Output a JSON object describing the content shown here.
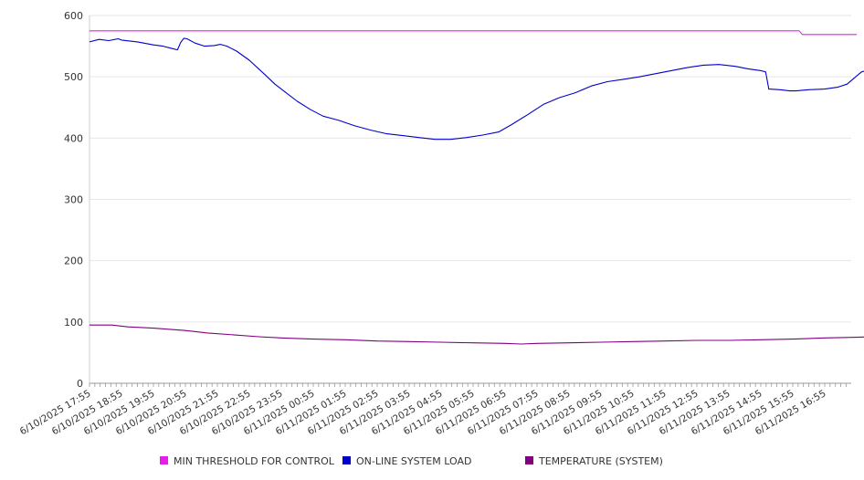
{
  "chart_data": {
    "type": "line",
    "title": "",
    "xlabel": "",
    "ylabel": "",
    "ylim": [
      0,
      600
    ],
    "y_ticks": [
      "0",
      "100",
      "200",
      "300",
      "400",
      "500",
      "600"
    ],
    "x_tick_labels": [
      "6/10/2025 17:55",
      "6/10/2025 18:55",
      "6/10/2025 19:55",
      "6/10/2025 20:55",
      "6/10/2025 21:55",
      "6/10/2025 22:55",
      "6/10/2025 23:55",
      "6/11/2025 00:55",
      "6/11/2025 01:55",
      "6/11/2025 02:55",
      "6/11/2025 03:55",
      "6/11/2025 04:55",
      "6/11/2025 05:55",
      "6/11/2025 06:55",
      "6/11/2025 07:55",
      "6/11/2025 08:55",
      "6/11/2025 09:55",
      "6/11/2025 10:55",
      "6/11/2025 11:55",
      "6/11/2025 12:55",
      "6/11/2025 13:55",
      "6/11/2025 14:55",
      "6/11/2025 15:55",
      "6/11/2025 16:55"
    ],
    "x_range_hours": [
      0,
      24
    ],
    "grid": "horizontal",
    "legend_position": "bottom",
    "series": [
      {
        "name": "MIN THRESHOLD FOR CONTROL",
        "color": "#e61ee6",
        "points": [
          [
            0,
            575
          ],
          [
            22.2,
            575
          ],
          [
            22.3,
            569
          ],
          [
            24,
            569
          ]
        ]
      },
      {
        "name": "ON-LINE SYSTEM LOAD",
        "color": "#0000cc",
        "points": [
          [
            0,
            557
          ],
          [
            0.3,
            561
          ],
          [
            0.6,
            559
          ],
          [
            0.9,
            562
          ],
          [
            1.0,
            560
          ],
          [
            1.5,
            557
          ],
          [
            2.0,
            552
          ],
          [
            2.3,
            550
          ],
          [
            2.6,
            546
          ],
          [
            2.75,
            544
          ],
          [
            2.85,
            556
          ],
          [
            2.95,
            563
          ],
          [
            3.05,
            562
          ],
          [
            3.3,
            555
          ],
          [
            3.6,
            550
          ],
          [
            3.9,
            551
          ],
          [
            4.1,
            553
          ],
          [
            4.3,
            550
          ],
          [
            4.6,
            542
          ],
          [
            5.0,
            527
          ],
          [
            5.5,
            503
          ],
          [
            5.8,
            488
          ],
          [
            6.1,
            476
          ],
          [
            6.5,
            460
          ],
          [
            6.9,
            447
          ],
          [
            7.3,
            436
          ],
          [
            7.8,
            429
          ],
          [
            8.3,
            420
          ],
          [
            8.8,
            413
          ],
          [
            9.3,
            407
          ],
          [
            9.8,
            404
          ],
          [
            10.3,
            401
          ],
          [
            10.8,
            398
          ],
          [
            11.3,
            398
          ],
          [
            11.8,
            401
          ],
          [
            12.3,
            405
          ],
          [
            12.8,
            410
          ],
          [
            13.2,
            422
          ],
          [
            13.7,
            438
          ],
          [
            14.2,
            455
          ],
          [
            14.7,
            466
          ],
          [
            15.2,
            474
          ],
          [
            15.7,
            485
          ],
          [
            16.2,
            492
          ],
          [
            16.7,
            496
          ],
          [
            17.2,
            500
          ],
          [
            17.7,
            505
          ],
          [
            18.2,
            510
          ],
          [
            18.7,
            515
          ],
          [
            19.2,
            519
          ],
          [
            19.7,
            520
          ],
          [
            20.2,
            517
          ],
          [
            20.6,
            513
          ],
          [
            21.0,
            510
          ],
          [
            21.15,
            508
          ],
          [
            21.25,
            480
          ],
          [
            21.6,
            479
          ],
          [
            21.9,
            477
          ],
          [
            22.1,
            477
          ],
          [
            22.5,
            479
          ],
          [
            23.0,
            480
          ],
          [
            23.4,
            483
          ],
          [
            23.7,
            488
          ],
          [
            23.9,
            497
          ],
          [
            24.15,
            508
          ],
          [
            24.4,
            512
          ],
          [
            24.8,
            512
          ],
          [
            25.1,
            515
          ],
          [
            25.4,
            512
          ],
          [
            25.7,
            513
          ],
          [
            26.0,
            512
          ],
          [
            26.3,
            514
          ],
          [
            26.6,
            517
          ]
        ]
      },
      {
        "name": "TEMPERATURE (SYSTEM)",
        "color": "#800080",
        "points": [
          [
            0,
            95
          ],
          [
            0.7,
            95
          ],
          [
            1.2,
            92
          ],
          [
            2.0,
            90
          ],
          [
            3.0,
            86
          ],
          [
            3.7,
            82
          ],
          [
            4.5,
            79
          ],
          [
            5.3,
            76
          ],
          [
            6.0,
            74
          ],
          [
            7.0,
            72
          ],
          [
            8.0,
            71
          ],
          [
            9.0,
            69
          ],
          [
            10.0,
            68
          ],
          [
            11.0,
            67
          ],
          [
            12.0,
            66
          ],
          [
            13.0,
            65
          ],
          [
            13.5,
            64
          ],
          [
            14.0,
            65
          ],
          [
            15.0,
            66
          ],
          [
            16.0,
            67
          ],
          [
            17.0,
            68
          ],
          [
            18.0,
            69
          ],
          [
            19.0,
            70
          ],
          [
            20.0,
            70
          ],
          [
            21.0,
            71
          ],
          [
            22.0,
            72
          ],
          [
            23.0,
            74
          ],
          [
            24.0,
            75
          ],
          [
            25.0,
            77
          ],
          [
            26.0,
            78
          ],
          [
            26.6,
            80
          ]
        ]
      }
    ]
  }
}
